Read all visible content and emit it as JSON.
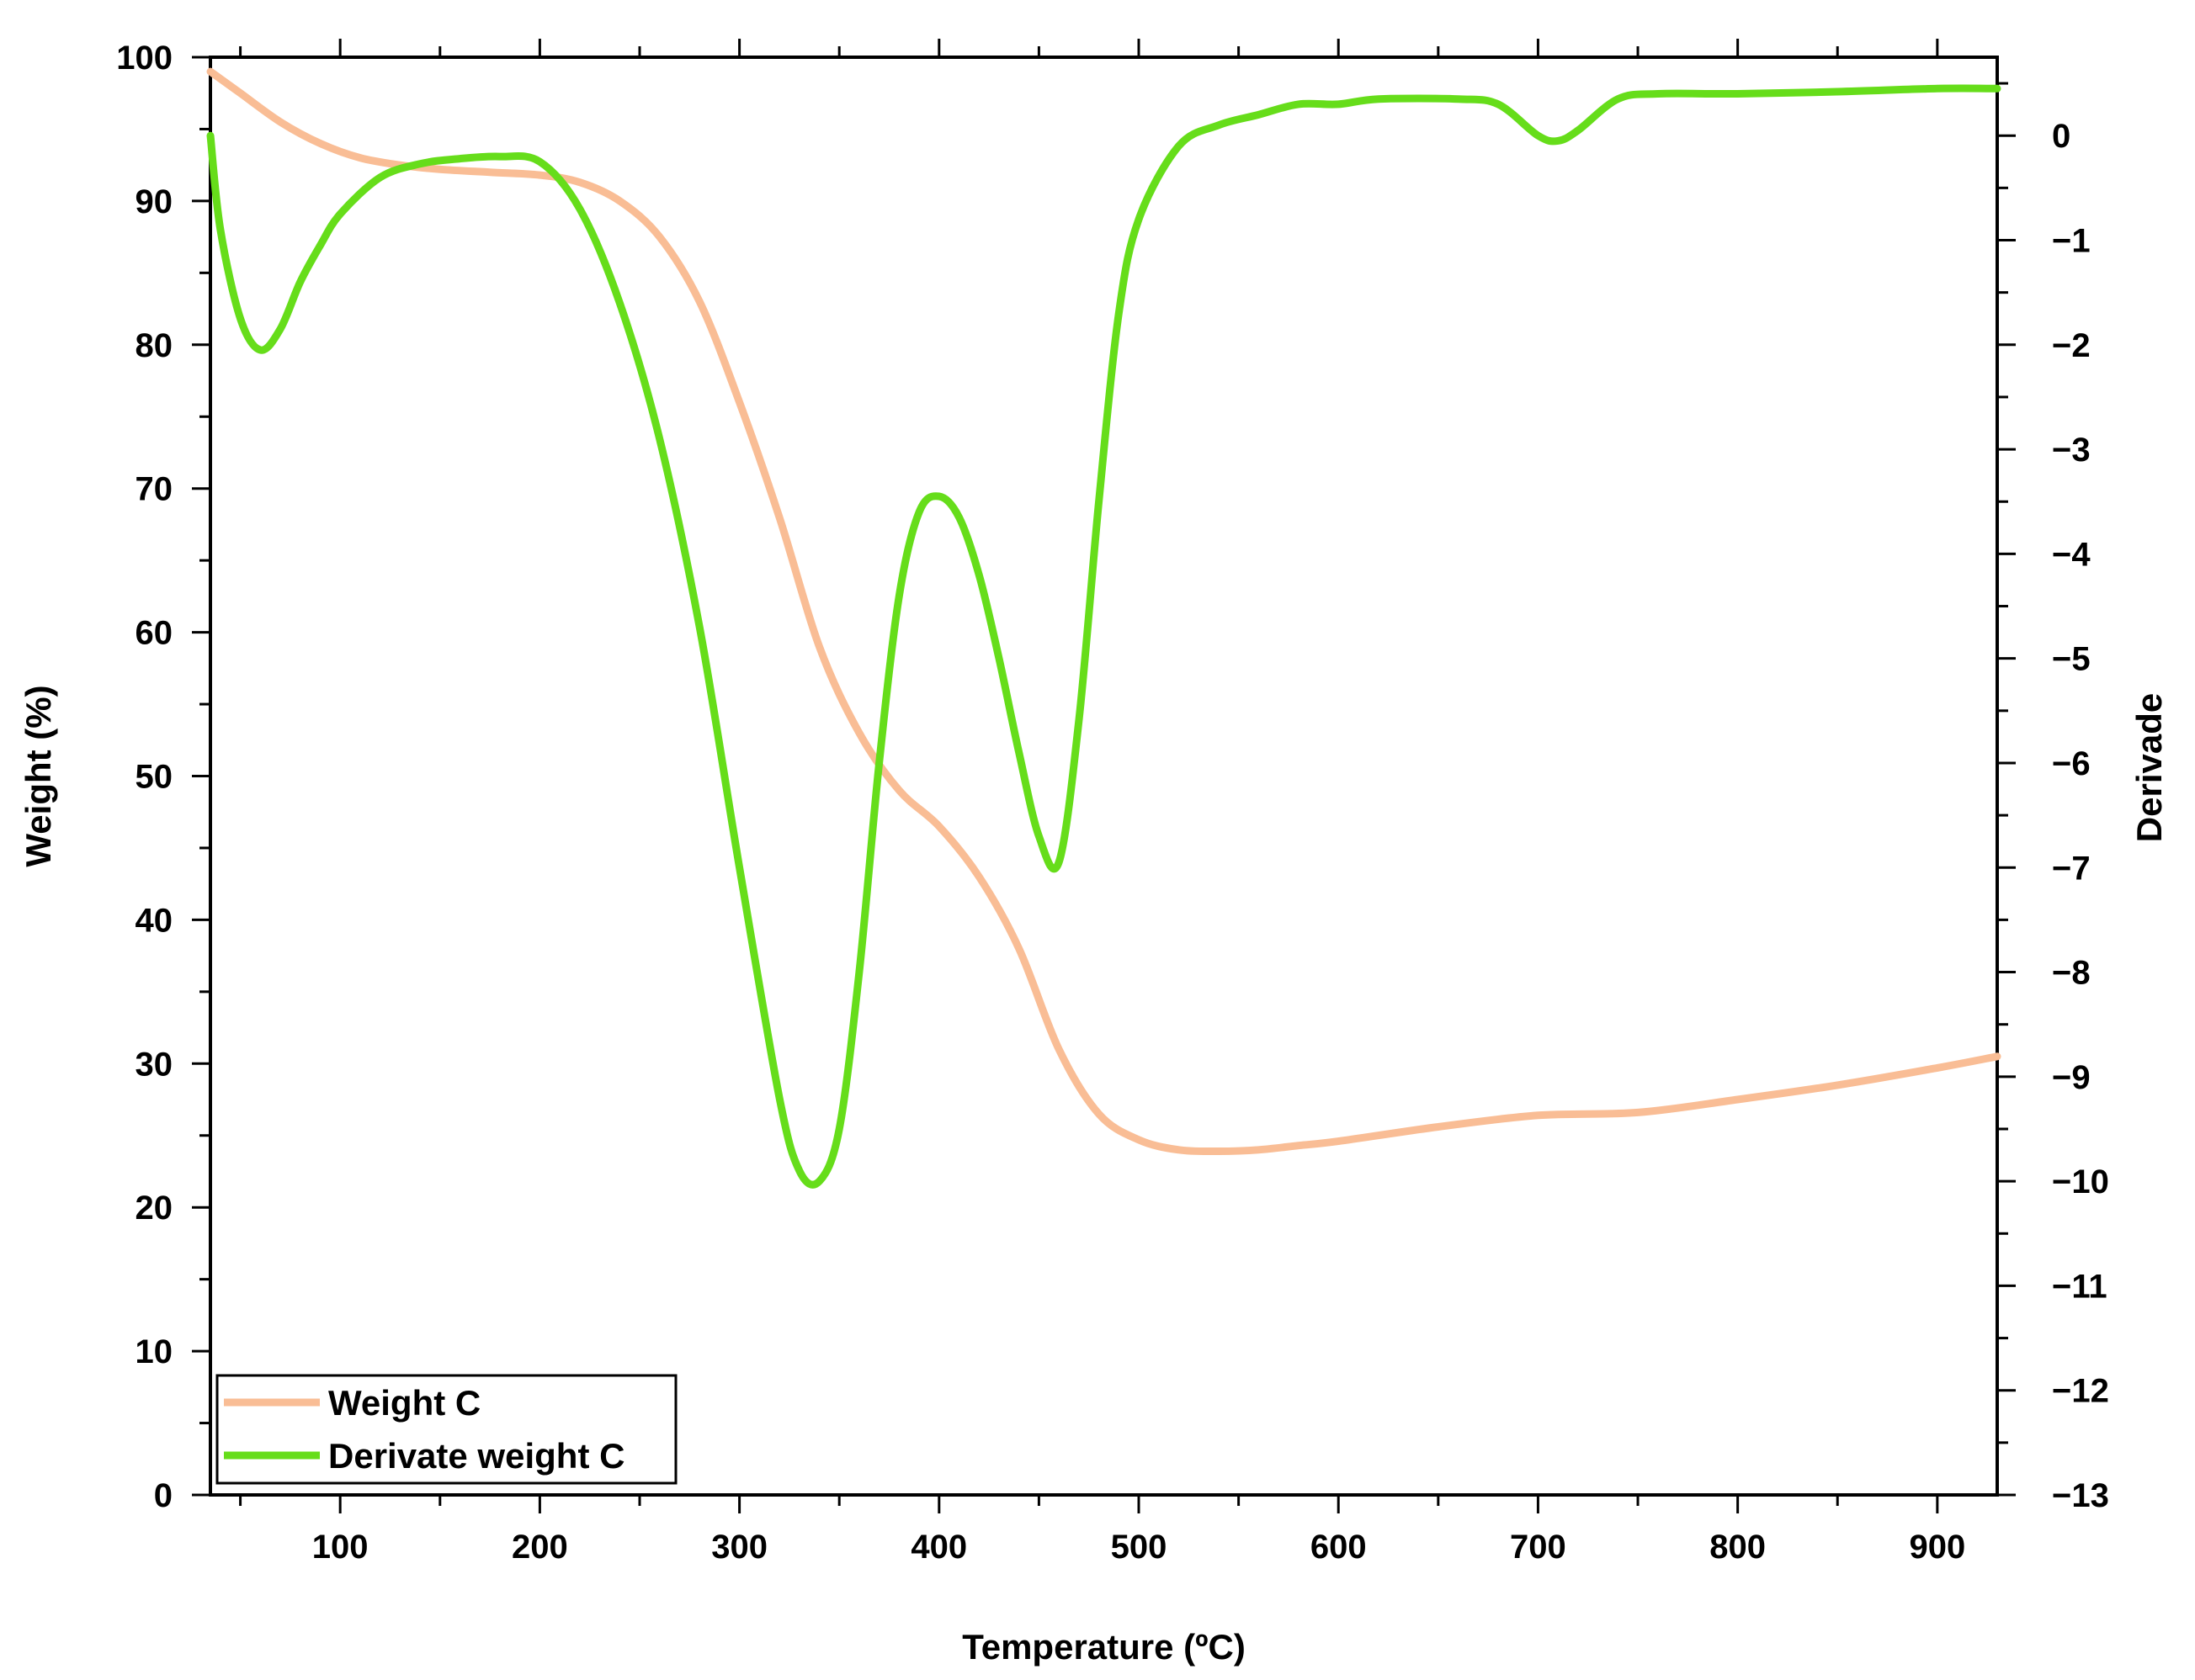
{
  "chart_data": {
    "type": "line",
    "title": "",
    "xlabel": "Temperature (ºC)",
    "ylabel": "Weight (%)",
    "y2label": "Derivade",
    "xlim": [
      35,
      930
    ],
    "ylim": [
      0,
      100
    ],
    "y2lim": [
      -13,
      0.75
    ],
    "x_ticks": [
      100,
      200,
      300,
      400,
      500,
      600,
      700,
      800,
      900
    ],
    "y_ticks": [
      0,
      10,
      20,
      30,
      40,
      50,
      60,
      70,
      80,
      90,
      100
    ],
    "y2_ticks": [
      0,
      -1,
      -2,
      -3,
      -4,
      -5,
      -6,
      -7,
      -8,
      -9,
      -10,
      -11,
      -12,
      -13
    ],
    "x_tick_labels": [
      "100",
      "200",
      "300",
      "400",
      "500",
      "600",
      "700",
      "800",
      "900"
    ],
    "y_tick_labels": [
      "0",
      "10",
      "20",
      "30",
      "40",
      "50",
      "60",
      "70",
      "80",
      "90",
      "100"
    ],
    "y2_tick_labels": [
      "0",
      "−1",
      "−2",
      "−3",
      "−4",
      "−5",
      "−6",
      "−7",
      "−8",
      "−9",
      "−10",
      "−11",
      "−12",
      "−13"
    ],
    "grid": false,
    "legend_position": "bottom-left",
    "series": [
      {
        "name": "Weight C",
        "axis": "left",
        "color": "#f9bd95",
        "x": [
          35,
          50,
          70,
          90,
          110,
          130,
          150,
          175,
          200,
          220,
          240,
          260,
          280,
          300,
          320,
          340,
          360,
          380,
          400,
          420,
          440,
          460,
          480,
          500,
          520,
          540,
          560,
          580,
          600,
          650,
          700,
          750,
          800,
          850,
          900,
          930
        ],
        "y": [
          99.0,
          97.5,
          95.5,
          94.0,
          93.0,
          92.5,
          92.2,
          92.0,
          91.8,
          91.3,
          90.0,
          87.5,
          83.0,
          76.0,
          68.0,
          59.0,
          53.0,
          49.0,
          46.5,
          43.0,
          38.0,
          31.0,
          26.5,
          24.7,
          24.0,
          23.9,
          24.0,
          24.3,
          24.6,
          25.6,
          26.4,
          26.6,
          27.5,
          28.5,
          29.7,
          30.5
        ]
      },
      {
        "name": "Derivate weight C",
        "axis": "right",
        "color": "#66dd1a",
        "x": [
          35,
          40,
          50,
          60,
          70,
          80,
          90,
          100,
          120,
          140,
          160,
          180,
          200,
          220,
          240,
          260,
          280,
          300,
          320,
          330,
          340,
          350,
          360,
          370,
          380,
          390,
          400,
          410,
          420,
          430,
          440,
          450,
          460,
          470,
          480,
          490,
          500,
          520,
          540,
          560,
          580,
          600,
          620,
          660,
          680,
          700,
          710,
          720,
          740,
          760,
          800,
          850,
          900,
          930
        ],
        "y": [
          0.0,
          -0.9,
          -1.75,
          -2.05,
          -1.85,
          -1.4,
          -1.05,
          -0.75,
          -0.4,
          -0.27,
          -0.22,
          -0.2,
          -0.25,
          -0.7,
          -1.6,
          -2.9,
          -4.7,
          -7.0,
          -9.2,
          -9.9,
          -10.0,
          -9.5,
          -8.0,
          -6.0,
          -4.4,
          -3.6,
          -3.45,
          -3.65,
          -4.2,
          -5.0,
          -5.9,
          -6.7,
          -6.95,
          -5.6,
          -3.5,
          -1.7,
          -0.8,
          -0.1,
          0.1,
          0.2,
          0.3,
          0.3,
          0.35,
          0.35,
          0.3,
          0.0,
          -0.05,
          0.05,
          0.35,
          0.4,
          0.4,
          0.42,
          0.45,
          0.45
        ]
      }
    ]
  }
}
